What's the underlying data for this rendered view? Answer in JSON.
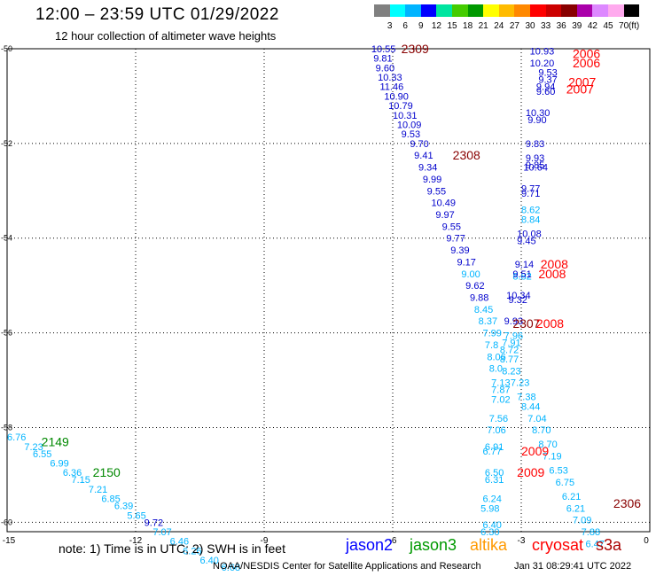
{
  "title": "12:00 – 23:59 UTC 01/29/2022",
  "subtitle": "12 hour collection of altimeter wave heights",
  "legend": {
    "unit": "(ft)",
    "colors": [
      "#808080",
      "#00ffff",
      "#00b4ff",
      "#0000ff",
      "#00e5a0",
      "#44cc00",
      "#009900",
      "#ffff00",
      "#ffbb00",
      "#ff8800",
      "#ff0000",
      "#cc0000",
      "#880000",
      "#aa00aa",
      "#dd88ff",
      "#ffaaee",
      "#000000"
    ],
    "labels": [
      "3",
      "6",
      "9",
      "12",
      "15",
      "18",
      "21",
      "24",
      "27",
      "30",
      "33",
      "36",
      "39",
      "42",
      "45",
      "70"
    ]
  },
  "axes": {
    "x_ticks": [
      "-15",
      "-12",
      "-9",
      "-6",
      "-3",
      "0"
    ],
    "y_ticks": [
      "-50",
      "-52",
      "-54",
      "-56",
      "-58",
      "-60"
    ]
  },
  "tracks": [
    {
      "label": "2309",
      "color": "#880000",
      "lon": -5.8,
      "lat": -50.0
    },
    {
      "label": "2308",
      "color": "#880000",
      "lon": -4.6,
      "lat": -52.25
    },
    {
      "label": "2307",
      "color": "#880000",
      "lon": -3.2,
      "lat": -55.8
    },
    {
      "label": "2306",
      "color": "#880000",
      "lon": -0.85,
      "lat": -59.6
    },
    {
      "label": "2006",
      "color": "#ff0000",
      "lon": -1.8,
      "lat": -50.1
    },
    {
      "label": "2006",
      "color": "#ff0000",
      "lon": -1.8,
      "lat": -50.3
    },
    {
      "label": "2007",
      "color": "#ff0000",
      "lon": -1.9,
      "lat": -50.7
    },
    {
      "label": "2007",
      "color": "#ff0000",
      "lon": -1.95,
      "lat": -50.85
    },
    {
      "label": "2008",
      "color": "#ff0000",
      "lon": -2.55,
      "lat": -54.55
    },
    {
      "label": "2008",
      "color": "#ff0000",
      "lon": -2.6,
      "lat": -54.75
    },
    {
      "label": "2008",
      "color": "#ff0000",
      "lon": -2.65,
      "lat": -55.8
    },
    {
      "label": "2009",
      "color": "#ff0000",
      "lon": -3.0,
      "lat": -58.5
    },
    {
      "label": "2009",
      "color": "#ff0000",
      "lon": -3.1,
      "lat": -58.95
    },
    {
      "label": "2149",
      "color": "#008800",
      "lon": -14.2,
      "lat": -58.3
    },
    {
      "label": "2150",
      "color": "#008800",
      "lon": -13.0,
      "lat": -58.95
    }
  ],
  "points": [
    {
      "t": "10.55",
      "c": "#0000cc",
      "lon": -6.5,
      "lat": -50.0
    },
    {
      "t": "9.81",
      "c": "#0000cc",
      "lon": -6.45,
      "lat": -50.2
    },
    {
      "t": "9.60",
      "c": "#0000cc",
      "lon": -6.4,
      "lat": -50.4
    },
    {
      "t": "10.33",
      "c": "#0000cc",
      "lon": -6.35,
      "lat": -50.6
    },
    {
      "t": "11.46",
      "c": "#0000cc",
      "lon": -6.3,
      "lat": -50.8
    },
    {
      "t": "10.90",
      "c": "#0000cc",
      "lon": -6.2,
      "lat": -51.0
    },
    {
      "t": "10.79",
      "c": "#0000cc",
      "lon": -6.1,
      "lat": -51.2
    },
    {
      "t": "10.31",
      "c": "#0000cc",
      "lon": -6.0,
      "lat": -51.4
    },
    {
      "t": "10.09",
      "c": "#0000cc",
      "lon": -5.9,
      "lat": -51.6
    },
    {
      "t": "9.53",
      "c": "#0000cc",
      "lon": -5.8,
      "lat": -51.8
    },
    {
      "t": "9.70",
      "c": "#0000cc",
      "lon": -5.6,
      "lat": -52.0
    },
    {
      "t": "9.41",
      "c": "#0000cc",
      "lon": -5.5,
      "lat": -52.25
    },
    {
      "t": "9.34",
      "c": "#0000cc",
      "lon": -5.4,
      "lat": -52.5
    },
    {
      "t": "9.99",
      "c": "#0000cc",
      "lon": -5.3,
      "lat": -52.75
    },
    {
      "t": "9.55",
      "c": "#0000cc",
      "lon": -5.2,
      "lat": -53.0
    },
    {
      "t": "10.49",
      "c": "#0000cc",
      "lon": -5.1,
      "lat": -53.25
    },
    {
      "t": "9.97",
      "c": "#0000cc",
      "lon": -5.0,
      "lat": -53.5
    },
    {
      "t": "9.55",
      "c": "#0000cc",
      "lon": -4.85,
      "lat": -53.75
    },
    {
      "t": "9.77",
      "c": "#0000cc",
      "lon": -4.75,
      "lat": -54.0
    },
    {
      "t": "9.39",
      "c": "#0000cc",
      "lon": -4.65,
      "lat": -54.25
    },
    {
      "t": "9.17",
      "c": "#0000cc",
      "lon": -4.5,
      "lat": -54.5
    },
    {
      "t": "9.00",
      "c": "#00b4ff",
      "lon": -4.4,
      "lat": -54.75
    },
    {
      "t": "9.62",
      "c": "#0000cc",
      "lon": -4.3,
      "lat": -55.0
    },
    {
      "t": "9.88",
      "c": "#0000cc",
      "lon": -4.2,
      "lat": -55.25
    },
    {
      "t": "8.45",
      "c": "#00b4ff",
      "lon": -4.1,
      "lat": -55.5
    },
    {
      "t": "8.37",
      "c": "#00b4ff",
      "lon": -4.0,
      "lat": -55.75
    },
    {
      "t": "7.99",
      "c": "#00b4ff",
      "lon": -3.9,
      "lat": -56.0
    },
    {
      "t": "7.8",
      "c": "#00b4ff",
      "lon": -3.85,
      "lat": -56.25
    },
    {
      "t": "8.06",
      "c": "#00b4ff",
      "lon": -3.8,
      "lat": -56.5
    },
    {
      "t": "8.0",
      "c": "#00b4ff",
      "lon": -3.75,
      "lat": -56.75
    },
    {
      "t": "7.13",
      "c": "#00b4ff",
      "lon": -3.7,
      "lat": -57.05
    },
    {
      "t": "7.87",
      "c": "#00b4ff",
      "lon": -3.7,
      "lat": -57.2
    },
    {
      "t": "7.02",
      "c": "#00b4ff",
      "lon": -3.7,
      "lat": -57.4
    },
    {
      "t": "7.56",
      "c": "#00b4ff",
      "lon": -3.75,
      "lat": -57.8
    },
    {
      "t": "7.06",
      "c": "#00b4ff",
      "lon": -3.8,
      "lat": -58.05
    },
    {
      "t": "6.91",
      "c": "#00b4ff",
      "lon": -3.85,
      "lat": -58.4
    },
    {
      "t": "6.77",
      "c": "#00b4ff",
      "lon": -3.9,
      "lat": -58.5
    },
    {
      "t": "6.50",
      "c": "#00b4ff",
      "lon": -3.85,
      "lat": -58.95
    },
    {
      "t": "6.31",
      "c": "#00b4ff",
      "lon": -3.85,
      "lat": -59.1
    },
    {
      "t": "6.24",
      "c": "#00b4ff",
      "lon": -3.9,
      "lat": -59.5
    },
    {
      "t": "5.98",
      "c": "#00b4ff",
      "lon": -3.95,
      "lat": -59.7
    },
    {
      "t": "6.40",
      "c": "#00b4ff",
      "lon": -3.9,
      "lat": -60.05
    },
    {
      "t": "6.30",
      "c": "#00b4ff",
      "lon": -3.95,
      "lat": -60.2
    },
    {
      "t": "10.93",
      "c": "#0000cc",
      "lon": -2.8,
      "lat": -50.05
    },
    {
      "t": "10.20",
      "c": "#0000cc",
      "lon": -2.8,
      "lat": -50.3
    },
    {
      "t": "9.53",
      "c": "#0000cc",
      "lon": -2.6,
      "lat": -50.5
    },
    {
      "t": "9.37",
      "c": "#0000cc",
      "lon": -2.6,
      "lat": -50.65
    },
    {
      "t": "9.94",
      "c": "#0000cc",
      "lon": -2.65,
      "lat": -50.8
    },
    {
      "t": "9.60",
      "c": "#0000cc",
      "lon": -2.65,
      "lat": -50.9
    },
    {
      "t": "10.30",
      "c": "#0000cc",
      "lon": -2.9,
      "lat": -51.35
    },
    {
      "t": "9.90",
      "c": "#0000cc",
      "lon": -2.85,
      "lat": -51.5
    },
    {
      "t": "9.83",
      "c": "#0000cc",
      "lon": -2.9,
      "lat": -52.0
    },
    {
      "t": "9.93",
      "c": "#0000cc",
      "lon": -2.9,
      "lat": -52.3
    },
    {
      "t": "9.85",
      "c": "#0000cc",
      "lon": -2.9,
      "lat": -52.45
    },
    {
      "t": "10.64",
      "c": "#0000cc",
      "lon": -2.95,
      "lat": -52.5
    },
    {
      "t": "9.77",
      "c": "#0000cc",
      "lon": -3.0,
      "lat": -52.95
    },
    {
      "t": "9.71",
      "c": "#0000cc",
      "lon": -3.0,
      "lat": -53.05
    },
    {
      "t": "8.62",
      "c": "#00b4ff",
      "lon": -3.0,
      "lat": -53.4
    },
    {
      "t": "8.84",
      "c": "#00b4ff",
      "lon": -3.0,
      "lat": -53.6
    },
    {
      "t": "10.08",
      "c": "#0000cc",
      "lon": -3.1,
      "lat": -53.9
    },
    {
      "t": "9.45",
      "c": "#0000cc",
      "lon": -3.1,
      "lat": -54.05
    },
    {
      "t": "9.14",
      "c": "#0000cc",
      "lon": -3.15,
      "lat": -54.55
    },
    {
      "t": "8.82",
      "c": "#00b4ff",
      "lon": -3.2,
      "lat": -54.8
    },
    {
      "t": "9.51",
      "c": "#0000cc",
      "lon": -3.2,
      "lat": -54.75
    },
    {
      "t": "10.34",
      "c": "#0000cc",
      "lon": -3.35,
      "lat": -55.2
    },
    {
      "t": "9.32",
      "c": "#0000cc",
      "lon": -3.3,
      "lat": -55.3
    },
    {
      "t": "9.93",
      "c": "#0000cc",
      "lon": -3.4,
      "lat": -55.75
    },
    {
      "t": "7.96",
      "c": "#00b4ff",
      "lon": -3.4,
      "lat": -56.05
    },
    {
      "t": "7.91",
      "c": "#00b4ff",
      "lon": -3.45,
      "lat": -56.2
    },
    {
      "t": "8.72",
      "c": "#00b4ff",
      "lon": -3.5,
      "lat": -56.35
    },
    {
      "t": "8.77",
      "c": "#00b4ff",
      "lon": -3.5,
      "lat": -56.55
    },
    {
      "t": "8.23",
      "c": "#00b4ff",
      "lon": -3.45,
      "lat": -56.8
    },
    {
      "t": "7.23",
      "c": "#00b4ff",
      "lon": -3.25,
      "lat": -57.05
    },
    {
      "t": "7.38",
      "c": "#00b4ff",
      "lon": -3.1,
      "lat": -57.35
    },
    {
      "t": "8.44",
      "c": "#00b4ff",
      "lon": -3.0,
      "lat": -57.55
    },
    {
      "t": "7.04",
      "c": "#00b4ff",
      "lon": -2.85,
      "lat": -57.8
    },
    {
      "t": "8.70",
      "c": "#00b4ff",
      "lon": -2.75,
      "lat": -58.05
    },
    {
      "t": "8.70",
      "c": "#00b4ff",
      "lon": -2.6,
      "lat": -58.35
    },
    {
      "t": "7.19",
      "c": "#00b4ff",
      "lon": -2.5,
      "lat": -58.6
    },
    {
      "t": "6.53",
      "c": "#00b4ff",
      "lon": -2.35,
      "lat": -58.9
    },
    {
      "t": "6.75",
      "c": "#00b4ff",
      "lon": -2.2,
      "lat": -59.15
    },
    {
      "t": "6.21",
      "c": "#00b4ff",
      "lon": -2.05,
      "lat": -59.45
    },
    {
      "t": "6.21",
      "c": "#00b4ff",
      "lon": -1.95,
      "lat": -59.7
    },
    {
      "t": "7.09",
      "c": "#00b4ff",
      "lon": -1.8,
      "lat": -59.95
    },
    {
      "t": "7.88",
      "c": "#00b4ff",
      "lon": -1.6,
      "lat": -60.2
    },
    {
      "t": "6.47",
      "c": "#00b4ff",
      "lon": -1.5,
      "lat": -60.45
    },
    {
      "t": "6.76",
      "c": "#00b4ff",
      "lon": -15.0,
      "lat": -58.2
    },
    {
      "t": "7.23",
      "c": "#00b4ff",
      "lon": -14.6,
      "lat": -58.4
    },
    {
      "t": "6.55",
      "c": "#00b4ff",
      "lon": -14.4,
      "lat": -58.55
    },
    {
      "t": "6.99",
      "c": "#00b4ff",
      "lon": -14.0,
      "lat": -58.75
    },
    {
      "t": "6.36",
      "c": "#00b4ff",
      "lon": -13.7,
      "lat": -58.95
    },
    {
      "t": "7.15",
      "c": "#00b4ff",
      "lon": -13.5,
      "lat": -59.1
    },
    {
      "t": "7.21",
      "c": "#00b4ff",
      "lon": -13.1,
      "lat": -59.3
    },
    {
      "t": "6.85",
      "c": "#00b4ff",
      "lon": -12.8,
      "lat": -59.5
    },
    {
      "t": "6.39",
      "c": "#00b4ff",
      "lon": -12.5,
      "lat": -59.65
    },
    {
      "t": "5.65",
      "c": "#00b4ff",
      "lon": -12.2,
      "lat": -59.85
    },
    {
      "t": "9.72",
      "c": "#0000cc",
      "lon": -11.8,
      "lat": -60.0
    },
    {
      "t": "7.07",
      "c": "#00b4ff",
      "lon": -11.6,
      "lat": -60.2
    },
    {
      "t": "6.46",
      "c": "#00b4ff",
      "lon": -11.2,
      "lat": -60.4
    },
    {
      "t": "6.26",
      "c": "#00b4ff",
      "lon": -10.9,
      "lat": -60.6
    },
    {
      "t": "6.40",
      "c": "#00b4ff",
      "lon": -10.5,
      "lat": -60.8
    },
    {
      "t": "6.68",
      "c": "#00b4ff",
      "lon": -10.0,
      "lat": -60.95
    }
  ],
  "note": "note: 1) Time is in UTC; 2) SWH is in feet",
  "satellites": [
    {
      "name": "jason2",
      "color": "#0000ff"
    },
    {
      "name": "jason3",
      "color": "#009900"
    },
    {
      "name": "altika",
      "color": "#ff9900"
    },
    {
      "name": "cryosat",
      "color": "#ff0000"
    },
    {
      "name": "s3a",
      "color": "#aa0000"
    }
  ],
  "footer": "NOAA/NESDIS Center for Satellite Applications and Research",
  "timestamp": "Jan 31 08:29:41 UTC 2022"
}
